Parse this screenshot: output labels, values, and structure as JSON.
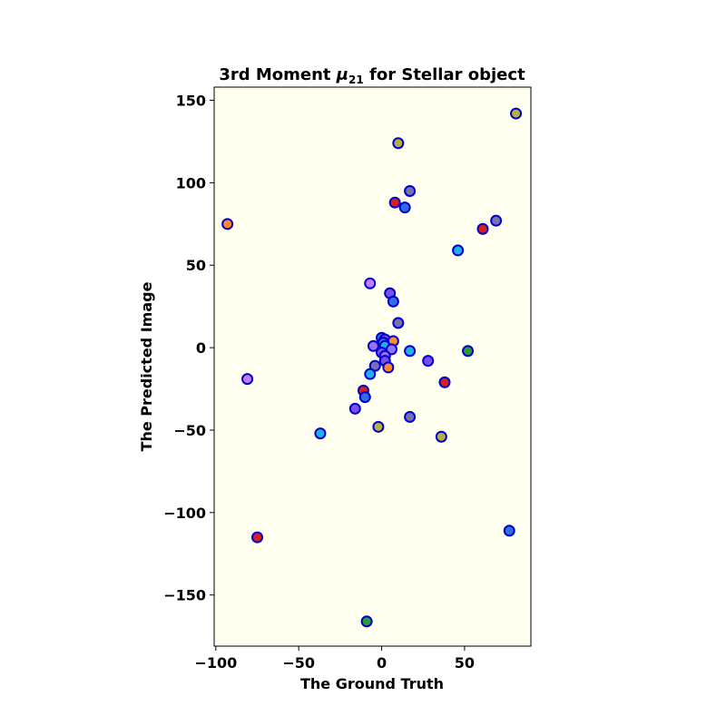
{
  "chart_data": {
    "type": "scatter",
    "title": "3rd Moment μ21 for Stellar object",
    "title_parts": {
      "prefix": "3rd Moment ",
      "symbol": "μ",
      "subscript": "21",
      "suffix": " for Stellar object"
    },
    "xlabel": "The Ground Truth",
    "ylabel": "The Predicted Image",
    "xlim": [
      -101,
      90
    ],
    "ylim": [
      -181,
      158
    ],
    "xticks": [
      -100,
      -50,
      0,
      50
    ],
    "xtick_labels": [
      "−100",
      "−50",
      "0",
      "50"
    ],
    "yticks": [
      -150,
      -100,
      -50,
      0,
      50,
      100,
      150
    ],
    "ytick_labels": [
      "−150",
      "−100",
      "−50",
      "0",
      "50",
      "100",
      "150"
    ],
    "grid": false,
    "legend": "none",
    "background_color": "#fffff0",
    "marker_edge_color": "#0000cc",
    "points": [
      {
        "x": 81,
        "y": 142,
        "color": "#b5b045"
      },
      {
        "x": 10,
        "y": 124,
        "color": "#b5b045"
      },
      {
        "x": 17,
        "y": 95,
        "color": "#7a6fb0"
      },
      {
        "x": 8,
        "y": 88,
        "color": "#d62020"
      },
      {
        "x": 14,
        "y": 85,
        "color": "#2f6fe0"
      },
      {
        "x": -93,
        "y": 75,
        "color": "#ff8a2a"
      },
      {
        "x": 69,
        "y": 77,
        "color": "#7a6fb0"
      },
      {
        "x": 61,
        "y": 72,
        "color": "#d62020"
      },
      {
        "x": 46,
        "y": 59,
        "color": "#1fb0f0"
      },
      {
        "x": -7,
        "y": 39,
        "color": "#c77bff"
      },
      {
        "x": 5,
        "y": 33,
        "color": "#7a4ff0"
      },
      {
        "x": 7,
        "y": 28,
        "color": "#2f6fe0"
      },
      {
        "x": 10,
        "y": 15,
        "color": "#7a6fb0"
      },
      {
        "x": 0,
        "y": 6,
        "color": "#2f6fe0"
      },
      {
        "x": 2,
        "y": 5,
        "color": "#7a4ff0"
      },
      {
        "x": 7,
        "y": 4,
        "color": "#ff8a2a"
      },
      {
        "x": 1,
        "y": 3,
        "color": "#2f6fe0"
      },
      {
        "x": -5,
        "y": 1,
        "color": "#9a6fff"
      },
      {
        "x": 2,
        "y": 1,
        "color": "#1fb0f0"
      },
      {
        "x": 6,
        "y": -1,
        "color": "#9a6fff"
      },
      {
        "x": 0,
        "y": -3,
        "color": "#7a4ff0"
      },
      {
        "x": 2,
        "y": -5,
        "color": "#9a6fff"
      },
      {
        "x": 2,
        "y": -8,
        "color": "#7a4ff0"
      },
      {
        "x": 17,
        "y": -2,
        "color": "#1fb0f0"
      },
      {
        "x": 28,
        "y": -8,
        "color": "#7a4ff0"
      },
      {
        "x": 52,
        "y": -2,
        "color": "#2a9a3a"
      },
      {
        "x": -4,
        "y": -11,
        "color": "#7a6fb0"
      },
      {
        "x": 4,
        "y": -12,
        "color": "#ff8a2a"
      },
      {
        "x": -7,
        "y": -16,
        "color": "#1fb0f0"
      },
      {
        "x": -81,
        "y": -19,
        "color": "#c77bff"
      },
      {
        "x": 38,
        "y": -21,
        "color": "#d62020"
      },
      {
        "x": -11,
        "y": -26,
        "color": "#d62020"
      },
      {
        "x": -10,
        "y": -30,
        "color": "#2f6fe0"
      },
      {
        "x": -16,
        "y": -37,
        "color": "#7a4ff0"
      },
      {
        "x": 17,
        "y": -42,
        "color": "#7a6fb0"
      },
      {
        "x": -2,
        "y": -48,
        "color": "#b5b045"
      },
      {
        "x": -37,
        "y": -52,
        "color": "#1fb0f0"
      },
      {
        "x": 36,
        "y": -54,
        "color": "#b5b045"
      },
      {
        "x": 77,
        "y": -111,
        "color": "#2f6fe0"
      },
      {
        "x": -75,
        "y": -115,
        "color": "#d62020"
      },
      {
        "x": -9,
        "y": -166,
        "color": "#2a9a3a"
      }
    ]
  }
}
